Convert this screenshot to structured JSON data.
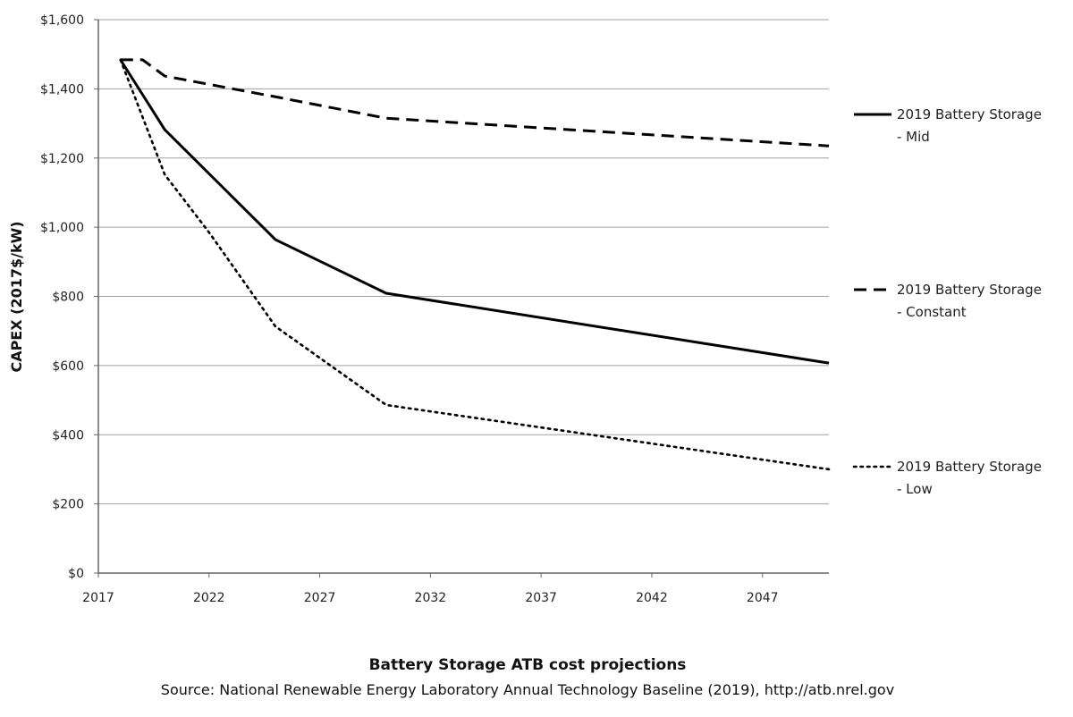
{
  "chart_data": {
    "type": "line",
    "title": "Battery Storage ATB cost projections",
    "subtitle": "Source: National Renewable Energy Laboratory Annual Technology Baseline (2019), http://atb.nrel.gov",
    "xlabel": "",
    "ylabel": "CAPEX (2017$/kW)",
    "xlim": [
      2017,
      2050
    ],
    "ylim": [
      0,
      1600
    ],
    "x_ticks": [
      "2017",
      "2022",
      "2027",
      "2032",
      "2037",
      "2042",
      "2047"
    ],
    "y_ticks": [
      "$0",
      "$200",
      "$400",
      "$600",
      "$800",
      "$1,000",
      "$1,200",
      "$1,400",
      "$1,600"
    ],
    "grid": "horizontal",
    "legend_position": "right",
    "series": [
      {
        "name": "2019 Battery Storage - Mid",
        "name_lines": [
          "2019 Battery Storage",
          "- Mid"
        ],
        "style": "solid",
        "x": [
          2018,
          2020,
          2025,
          2030,
          2050
        ],
        "y": [
          1484,
          1282,
          964,
          809,
          607
        ]
      },
      {
        "name": "2019 Battery Storage - Constant",
        "name_lines": [
          "2019 Battery Storage",
          "- Constant"
        ],
        "style": "dashed",
        "x": [
          2018,
          2019,
          2020,
          2025,
          2030,
          2050
        ],
        "y": [
          1484,
          1484,
          1437,
          1377,
          1315,
          1235
        ]
      },
      {
        "name": "2019 Battery Storage - Low",
        "name_lines": [
          "2019 Battery Storage",
          "- Low"
        ],
        "style": "dotted",
        "x": [
          2018,
          2020,
          2022,
          2025,
          2030,
          2050
        ],
        "y": [
          1484,
          1152,
          985,
          713,
          486,
          300
        ]
      }
    ],
    "line_color": "#000000",
    "grid_color": "#a0a0a0"
  }
}
